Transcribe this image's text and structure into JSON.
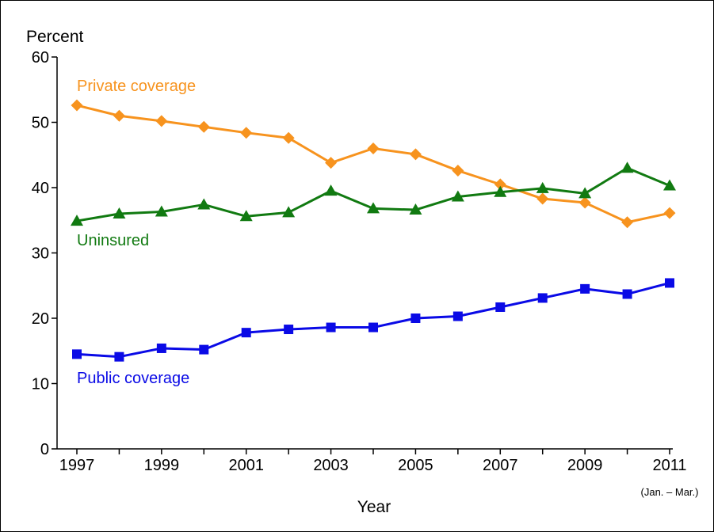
{
  "chart_data": {
    "type": "line",
    "title": "",
    "ylabel": "Percent",
    "xlabel": "Year",
    "x_note": "(Jan. – Mar.)",
    "ylim": [
      0,
      60
    ],
    "yticks": [
      0,
      10,
      20,
      30,
      40,
      50,
      60
    ],
    "x": [
      1997,
      1998,
      1999,
      2000,
      2001,
      2002,
      2003,
      2004,
      2005,
      2006,
      2007,
      2008,
      2009,
      2010,
      2011
    ],
    "xtick_labels": [
      "1997",
      "1999",
      "2001",
      "2003",
      "2005",
      "2007",
      "2009",
      "2011"
    ],
    "grid": false,
    "series": [
      {
        "name": "Private coverage",
        "color": "#F7931E",
        "marker": "diamond",
        "values": [
          52.6,
          51.0,
          50.2,
          49.3,
          48.4,
          47.6,
          43.8,
          46.0,
          45.1,
          42.6,
          40.5,
          38.3,
          37.7,
          34.7,
          36.1
        ]
      },
      {
        "name": "Uninsured",
        "color": "#117A11",
        "marker": "triangle",
        "values": [
          34.9,
          36.0,
          36.3,
          37.4,
          35.6,
          36.2,
          39.5,
          36.8,
          36.6,
          38.6,
          39.3,
          39.9,
          39.1,
          43.0,
          40.3
        ]
      },
      {
        "name": "Public coverage",
        "color": "#0A0AE6",
        "marker": "square",
        "values": [
          14.5,
          14.1,
          15.4,
          15.2,
          17.8,
          18.3,
          18.6,
          18.6,
          20.0,
          20.3,
          21.7,
          23.1,
          24.5,
          23.7,
          25.4
        ]
      }
    ]
  }
}
